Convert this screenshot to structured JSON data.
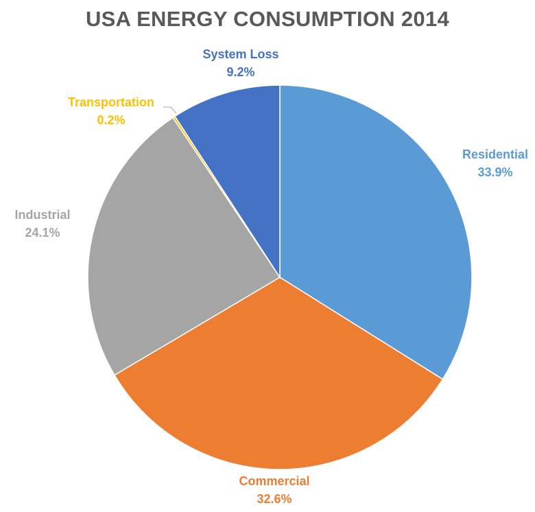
{
  "chart_data": {
    "type": "pie",
    "title": "USA ENERGY CONSUMPTION 2014",
    "start_angle_deg": 0,
    "direction": "clockwise",
    "slices": [
      {
        "name": "Residential",
        "value": 33.9,
        "label": "33.9%",
        "color": "#5B9BD5",
        "label_color": "#5B9BD5"
      },
      {
        "name": "Commercial",
        "value": 32.6,
        "label": "32.6%",
        "color": "#ED7D31",
        "label_color": "#ED7D31"
      },
      {
        "name": "Industrial",
        "value": 24.1,
        "label": "24.1%",
        "color": "#A5A5A5",
        "label_color": "#A5A5A5"
      },
      {
        "name": "Transportation",
        "value": 0.2,
        "label": "0.2%",
        "color": "#FFC000",
        "label_color": "#FFC000"
      },
      {
        "name": "System Loss",
        "value": 9.2,
        "label": "9.2%",
        "color": "#4472C4",
        "label_color": "#4472C4"
      }
    ]
  }
}
